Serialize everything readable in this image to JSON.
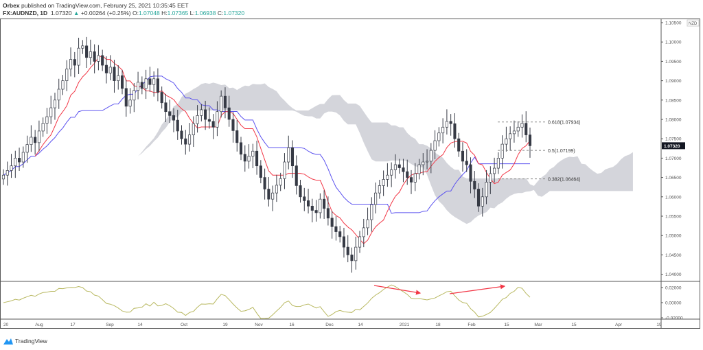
{
  "header": {
    "publisher": "Orbex",
    "published_text": "published on TradingView.com, February 25, 2021 10:35:45 EET",
    "symbol": "FX:AUDNZD, 1D",
    "last": "1.07320",
    "change": "+0.00264 (+0.25%)",
    "o_label": "O:",
    "open": "1.07048",
    "h_label": "H:",
    "high": "1.07365",
    "l_label": "L:",
    "low": "1.06938",
    "c_label": "C:",
    "close": "1.07320"
  },
  "logo": "TradingView",
  "chart_data": {
    "type": "candlestick",
    "currency": "NZD",
    "price_ticks": [
      "1.10500",
      "1.10000",
      "1.09500",
      "1.09000",
      "1.08500",
      "1.08000",
      "1.07500",
      "1.07000",
      "1.06500",
      "1.06000",
      "1.05500",
      "1.05000",
      "1.04500",
      "1.04000"
    ],
    "ylim": [
      1.04,
      1.105
    ],
    "last_price": "1.07320",
    "x_ticks": [
      "20",
      "Aug",
      "17",
      "Sep",
      "14",
      "Oct",
      "19",
      "Nov",
      "16",
      "Dec",
      "14",
      "2021",
      "18",
      "Feb",
      "15",
      "Mar",
      "15",
      "Apr",
      "19"
    ],
    "closes": [
      1.0656,
      1.0668,
      1.068,
      1.07,
      1.069,
      1.0715,
      1.0735,
      1.0754,
      1.074,
      1.077,
      1.079,
      1.0807,
      1.083,
      1.085,
      1.0878,
      1.09,
      1.093,
      1.0955,
      1.094,
      1.0984,
      1.099,
      1.096,
      1.0975,
      1.095,
      1.0965,
      1.094,
      1.092,
      1.0935,
      1.09,
      1.0913,
      1.088,
      1.0834,
      1.085,
      1.0875,
      1.0896,
      1.088,
      1.0905,
      1.089,
      1.0905,
      1.087,
      1.0843,
      1.082,
      1.081,
      1.0798,
      1.077,
      1.075,
      1.0736,
      1.076,
      1.0789,
      1.081,
      1.0825,
      1.08,
      1.0795,
      1.078,
      1.082,
      1.086,
      1.083,
      1.08,
      1.0771,
      1.074,
      1.071,
      1.0692,
      1.0705,
      1.0718,
      1.068,
      1.065,
      1.062,
      1.0594,
      1.061,
      1.063,
      1.0647,
      1.069,
      1.0727,
      1.068,
      1.0629,
      1.06,
      1.059,
      1.0576,
      1.0565,
      1.0559,
      1.0594,
      1.057,
      1.0545,
      1.0523,
      1.051,
      1.0497,
      1.047,
      1.045,
      1.0435,
      1.047,
      1.0497,
      1.052,
      1.0541,
      1.058,
      1.061,
      1.0629,
      1.0645,
      1.0656,
      1.067,
      1.0683,
      1.0675,
      1.0665,
      1.065,
      1.0638,
      1.066,
      1.0683,
      1.069,
      1.0692,
      1.072,
      1.0745,
      1.0765,
      1.078,
      1.0795,
      1.0789,
      1.075,
      1.0718,
      1.0692,
      1.0683,
      1.064,
      1.062,
      1.0576,
      1.06,
      1.0638,
      1.066,
      1.0674,
      1.07,
      1.0736,
      1.075,
      1.0763,
      1.077,
      1.078,
      1.079,
      1.076,
      1.0732
    ],
    "fib_levels": [
      {
        "label": "0.618(1.07934)",
        "price": 1.07934
      },
      {
        "label": "0.5(1.07199)",
        "price": 1.07199
      },
      {
        "label": "0.382(1.06464)",
        "price": 1.06464
      }
    ],
    "indicator": {
      "ticks": [
        "0.02000",
        "0.00000",
        "-0.02000"
      ],
      "ylim": [
        -0.025,
        0.025
      ],
      "color": "#b8b860"
    },
    "colors": {
      "tenkan": "#f23645",
      "kijun": "#5b52ef",
      "cloud": "#c9cbd2",
      "arrows": "#f23645",
      "up_body": "#ffffff",
      "down_body": "#363a45"
    }
  }
}
